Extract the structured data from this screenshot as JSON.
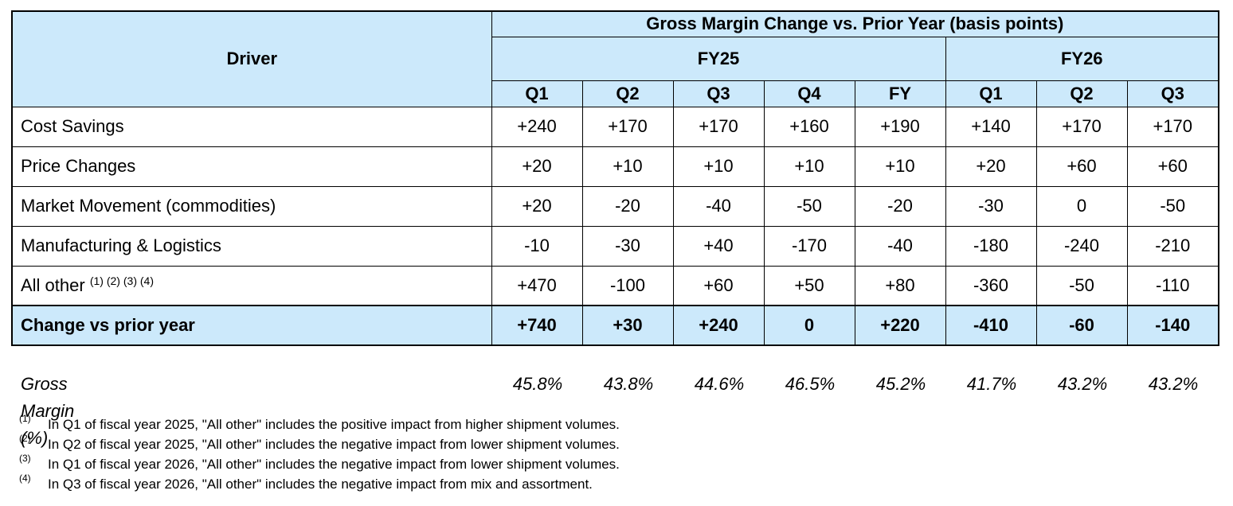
{
  "table": {
    "header": {
      "title": "Gross Margin Change vs. Prior Year (basis points)",
      "driver": "Driver",
      "groups": [
        "FY25",
        "FY26"
      ],
      "periods": [
        "Q1",
        "Q2",
        "Q3",
        "Q4",
        "FY",
        "Q1",
        "Q2",
        "Q3"
      ]
    },
    "rows": [
      {
        "label": "Cost Savings",
        "values": [
          "+240",
          "+170",
          "+170",
          "+160",
          "+190",
          "+140",
          "+170",
          "+170"
        ]
      },
      {
        "label": "Price Changes",
        "values": [
          "+20",
          "+10",
          "+10",
          "+10",
          "+10",
          "+20",
          "+60",
          "+60"
        ]
      },
      {
        "label": "Market Movement (commodities)",
        "values": [
          "+20",
          "-20",
          "-40",
          "-50",
          "-20",
          "-30",
          "0",
          "-50"
        ]
      },
      {
        "label": "Manufacturing & Logistics",
        "values": [
          "-10",
          "-30",
          "+40",
          "-170",
          "-40",
          "-180",
          "-240",
          "-210"
        ]
      },
      {
        "label": "All other",
        "notes": [
          "(1)",
          "(2)",
          "(3)",
          "(4)"
        ],
        "values": [
          "+470",
          "-100",
          "+60",
          "+50",
          "+80",
          "-360",
          "-50",
          "-110"
        ]
      }
    ],
    "total": {
      "label": "Change vs prior year",
      "values": [
        "+740",
        "+30",
        "+240",
        "0",
        "+220",
        "-410",
        "-60",
        "-140"
      ]
    }
  },
  "gross_margin": {
    "label": "Gross Margin (%)",
    "values": [
      "45.8%",
      "43.8%",
      "44.6%",
      "46.5%",
      "45.2%",
      "41.7%",
      "43.2%",
      "43.2%"
    ]
  },
  "footnotes": [
    {
      "mark": "(1)",
      "text": "In Q1 of fiscal year 2025, \"All other\" includes the positive impact from higher shipment volumes."
    },
    {
      "mark": "(2)",
      "text": "In Q2 of fiscal year 2025, \"All other\" includes the negative impact from lower shipment volumes."
    },
    {
      "mark": "(3)",
      "text": "In Q1 of fiscal year 2026, \"All other\" includes the negative impact from lower shipment volumes."
    },
    {
      "mark": "(4)",
      "text": "In Q3 of fiscal year 2026, \"All other\" includes the negative impact from mix and assortment."
    }
  ]
}
